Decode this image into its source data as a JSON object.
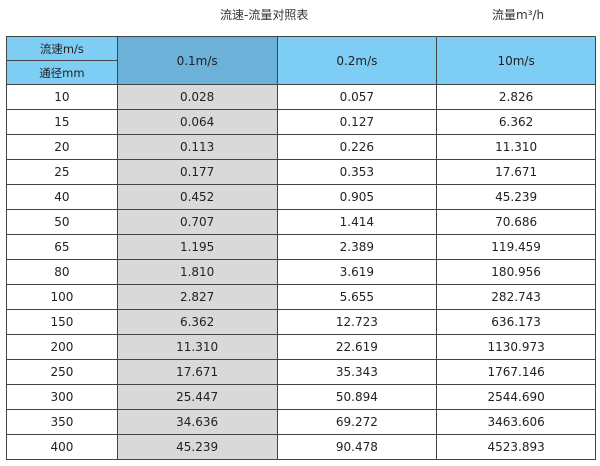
{
  "title": "流速-流量对照表",
  "unit": "流量m³/h",
  "header": {
    "velocity_label": "流速m/s",
    "diameter_label": "通径mm",
    "columns": [
      "0.1m/s",
      "0.2m/s",
      "10m/s"
    ]
  },
  "colors": {
    "header": "#7dcdf4",
    "highlight_header": "#6cb1d7",
    "highlight_column": "#d9d9d9"
  },
  "rows": [
    [
      "10",
      "0.028",
      "0.057",
      "2.826"
    ],
    [
      "15",
      "0.064",
      "0.127",
      "6.362"
    ],
    [
      "20",
      "0.113",
      "0.226",
      "11.310"
    ],
    [
      "25",
      "0.177",
      "0.353",
      "17.671"
    ],
    [
      "40",
      "0.452",
      "0.905",
      "45.239"
    ],
    [
      "50",
      "0.707",
      "1.414",
      "70.686"
    ],
    [
      "65",
      "1.195",
      "2.389",
      "119.459"
    ],
    [
      "80",
      "1.810",
      "3.619",
      "180.956"
    ],
    [
      "100",
      "2.827",
      "5.655",
      "282.743"
    ],
    [
      "150",
      "6.362",
      "12.723",
      "636.173"
    ],
    [
      "200",
      "11.310",
      "22.619",
      "1130.973"
    ],
    [
      "250",
      "17.671",
      "35.343",
      "1767.146"
    ],
    [
      "300",
      "25.447",
      "50.894",
      "2544.690"
    ],
    [
      "350",
      "34.636",
      "69.272",
      "3463.606"
    ],
    [
      "400",
      "45.239",
      "90.478",
      "4523.893"
    ]
  ]
}
